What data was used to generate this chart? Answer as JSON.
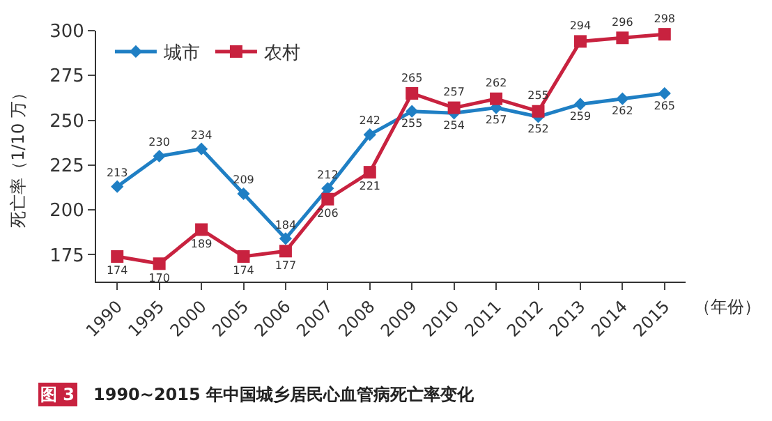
{
  "chart_data": {
    "type": "line",
    "title": "1990~2015 年中国城乡居民心血管病死亡率变化",
    "annotations": [
      "图 3"
    ],
    "xlabel": "（年份）",
    "ylabel": "死亡率（1/10 万）",
    "categories": [
      "1990",
      "1995",
      "2000",
      "2005",
      "2006",
      "2007",
      "2008",
      "2009",
      "2010",
      "2011",
      "2012",
      "2013",
      "2014",
      "2015"
    ],
    "series": [
      {
        "name": "城市",
        "color": "#1f7fc4",
        "marker": "diamond",
        "values": [
          213,
          230,
          234,
          209,
          184,
          212,
          242,
          255,
          254,
          257,
          252,
          259,
          262,
          265
        ]
      },
      {
        "name": "农村",
        "color": "#c8223f",
        "marker": "square",
        "values": [
          174,
          170,
          189,
          174,
          177,
          206,
          221,
          265,
          257,
          262,
          255,
          294,
          296,
          298
        ]
      }
    ],
    "ylim": [
      160,
      300
    ],
    "yticks": [
      175,
      200,
      225,
      250,
      275,
      300
    ],
    "data_labels": true,
    "legend": "top left"
  }
}
